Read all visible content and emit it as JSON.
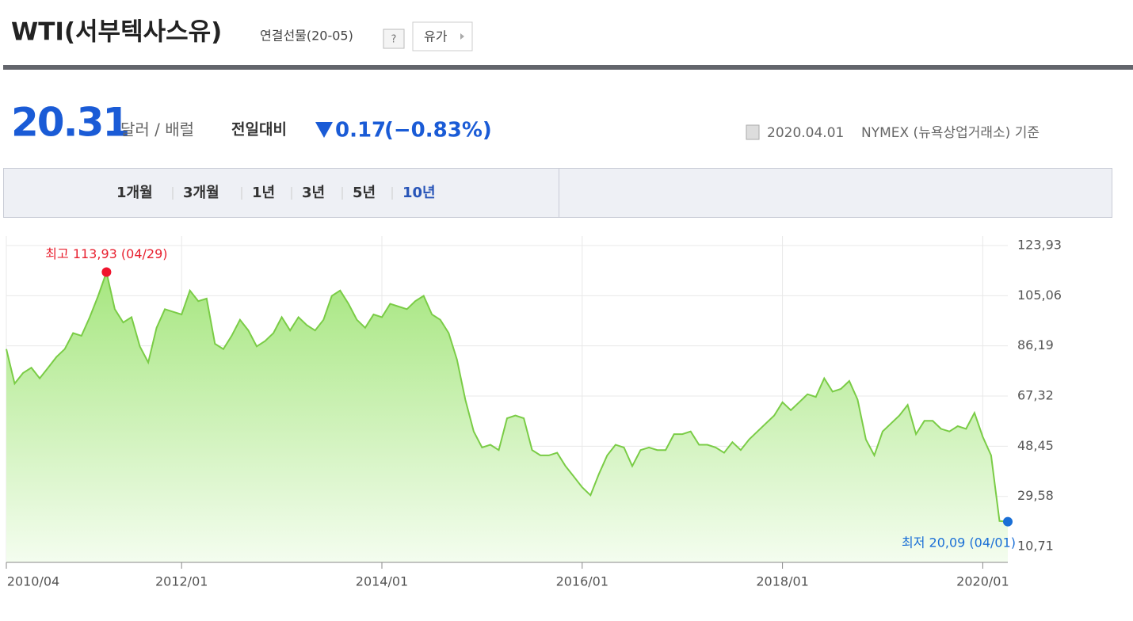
{
  "header": {
    "title": "WTI(서부텍사스유)",
    "subtitle": "연결선물(20-05)",
    "help": "?",
    "link": "유가"
  },
  "quote": {
    "price": "20.31",
    "unit": "달러 / 배럴",
    "change_label": "전일대비",
    "change": "0.17",
    "change_pct": "(−0.83%)",
    "date": "2020.04.01",
    "source": "NYMEX (뉴욕상업거래소) 기준"
  },
  "tabs": [
    "1개월",
    "3개월",
    "1년",
    "3년",
    "5년",
    "10년"
  ],
  "active_tab": "10년",
  "chart_data": {
    "type": "area",
    "color": "#7acc46",
    "annotations": [
      "최고 113,93 (04/29)",
      "최저 20,09 (04/01)"
    ],
    "x": [
      "2010/04",
      "2010/05",
      "2010/06",
      "2010/07",
      "2010/08",
      "2010/09",
      "2010/10",
      "2010/11",
      "2010/12",
      "2011/01",
      "2011/02",
      "2011/03",
      "2011/04",
      "2011/05",
      "2011/06",
      "2011/07",
      "2011/08",
      "2011/09",
      "2011/10",
      "2011/11",
      "2011/12",
      "2012/01",
      "2012/02",
      "2012/03",
      "2012/04",
      "2012/05",
      "2012/06",
      "2012/07",
      "2012/08",
      "2012/09",
      "2012/10",
      "2012/11",
      "2012/12",
      "2013/01",
      "2013/02",
      "2013/03",
      "2013/04",
      "2013/05",
      "2013/06",
      "2013/07",
      "2013/08",
      "2013/09",
      "2013/10",
      "2013/11",
      "2013/12",
      "2014/01",
      "2014/02",
      "2014/03",
      "2014/04",
      "2014/05",
      "2014/06",
      "2014/07",
      "2014/08",
      "2014/09",
      "2014/10",
      "2014/11",
      "2014/12",
      "2015/01",
      "2015/02",
      "2015/03",
      "2015/04",
      "2015/05",
      "2015/06",
      "2015/07",
      "2015/08",
      "2015/09",
      "2015/10",
      "2015/11",
      "2015/12",
      "2016/01",
      "2016/02",
      "2016/03",
      "2016/04",
      "2016/05",
      "2016/06",
      "2016/07",
      "2016/08",
      "2016/09",
      "2016/10",
      "2016/11",
      "2016/12",
      "2017/01",
      "2017/02",
      "2017/03",
      "2017/04",
      "2017/05",
      "2017/06",
      "2017/07",
      "2017/08",
      "2017/09",
      "2017/10",
      "2017/11",
      "2017/12",
      "2018/01",
      "2018/02",
      "2018/03",
      "2018/04",
      "2018/05",
      "2018/06",
      "2018/07",
      "2018/08",
      "2018/09",
      "2018/10",
      "2018/11",
      "2018/12",
      "2019/01",
      "2019/02",
      "2019/03",
      "2019/04",
      "2019/05",
      "2019/06",
      "2019/07",
      "2019/08",
      "2019/09",
      "2019/10",
      "2019/11",
      "2019/12",
      "2020/01",
      "2020/02",
      "2020/03",
      "2020/04"
    ],
    "values": [
      85,
      72,
      76,
      78,
      74,
      78,
      82,
      85,
      91,
      90,
      97,
      105,
      113.93,
      100,
      95,
      97,
      86,
      80,
      93,
      100,
      99,
      98,
      107,
      103,
      104,
      87,
      85,
      90,
      96,
      92,
      86,
      88,
      91,
      97,
      92,
      97,
      94,
      92,
      96,
      105,
      107,
      102,
      96,
      93,
      98,
      97,
      102,
      101,
      100,
      103,
      105,
      98,
      96,
      91,
      81,
      66,
      54,
      48,
      49,
      47,
      59,
      60,
      59,
      47,
      45,
      45,
      46,
      41,
      37,
      33,
      30,
      38,
      45,
      49,
      48,
      41,
      47,
      48,
      47,
      47,
      53,
      53,
      54,
      49,
      49,
      48,
      46,
      50,
      47,
      51,
      54,
      57,
      60,
      65,
      62,
      65,
      68,
      67,
      74,
      69,
      70,
      73,
      66,
      51,
      45,
      54,
      57,
      60,
      64,
      53,
      58,
      58,
      55,
      54,
      56,
      55,
      61,
      52,
      45,
      20.31,
      20.09
    ],
    "xlim": [
      "2010/04",
      "2020/04"
    ],
    "xticks": [
      "2010/04",
      "2012/01",
      "2014/01",
      "2016/01",
      "2018/01",
      "2020/01"
    ],
    "ylim": [
      4.77,
      127.5
    ],
    "yticks": [
      {
        "value": 10.71,
        "label": "10,71"
      },
      {
        "value": 29.58,
        "label": "29,58"
      },
      {
        "value": 48.45,
        "label": "48,45"
      },
      {
        "value": 67.32,
        "label": "67,32"
      },
      {
        "value": 86.19,
        "label": "86,19"
      },
      {
        "value": 105.06,
        "label": "105,06"
      },
      {
        "value": 123.93,
        "label": "123,93"
      }
    ],
    "grid": true
  }
}
